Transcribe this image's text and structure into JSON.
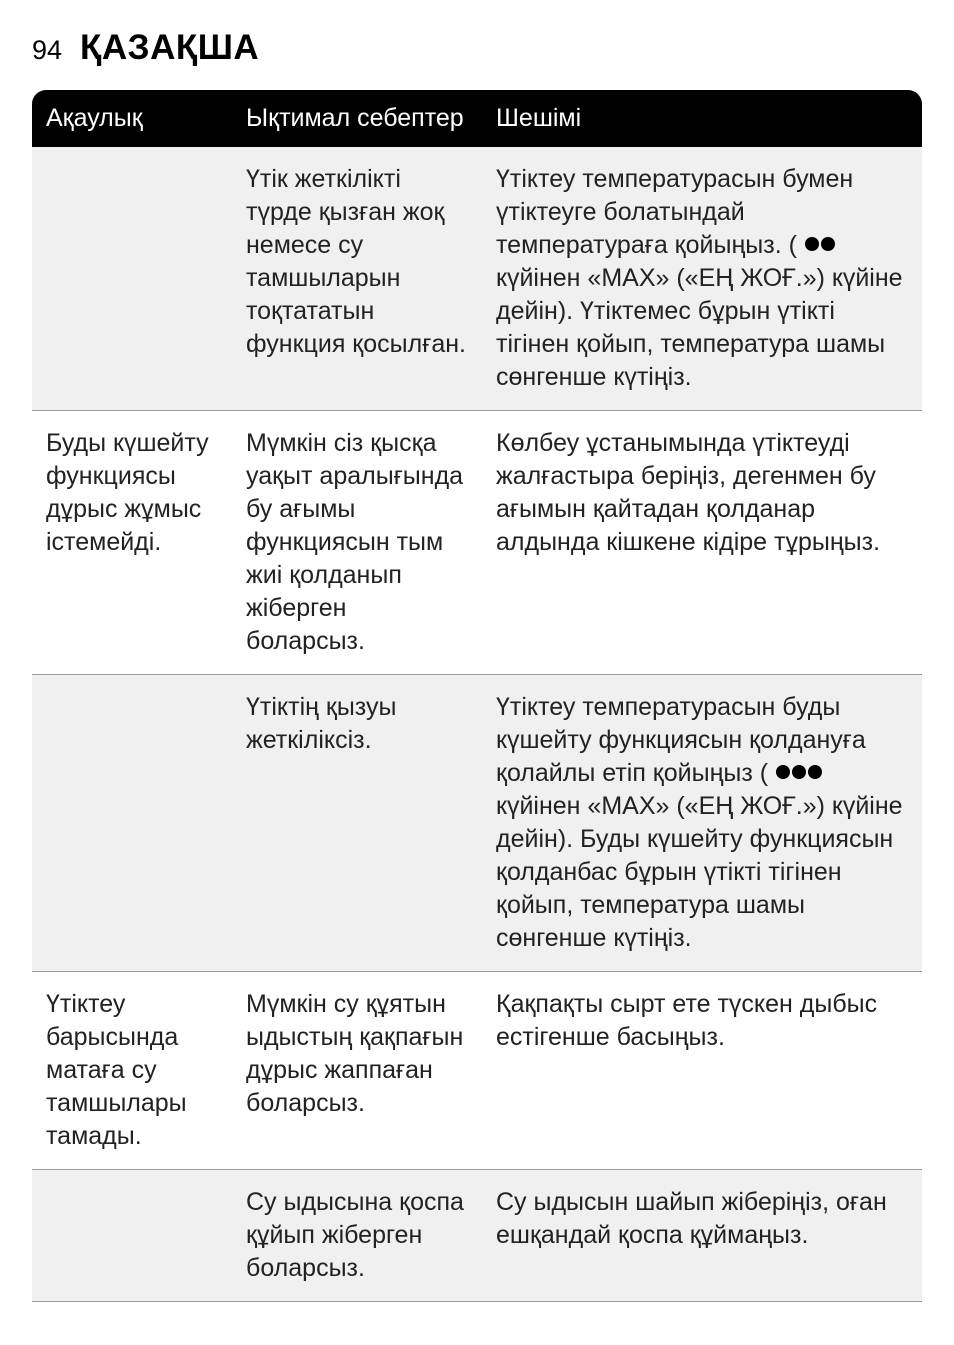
{
  "header": {
    "pageNumber": "94",
    "title": "ҚАЗАҚША"
  },
  "table": {
    "columns": [
      "Ақаулық",
      "Ықтимал себептер",
      "Шешімі"
    ],
    "rows": [
      {
        "problem": "",
        "cause": "Үтік жеткілікті түрде қызған жоқ немесе су тамшыларын тоқтататын функция қосылған.",
        "solution_before": "Үтіктеу температурасын бумен үтіктеуге болатындай температураға қойыңыз. ( ",
        "solution_dots": 2,
        "solution_after": " күйінен «MAX» («ЕҢ ЖОҒ.») күйіне дейін). Үтіктемес бұрын үтікті тігінен қойып, температура шамы сөнгенше күтіңіз."
      },
      {
        "problem": "Буды күшейту функциясы дұрыс жұмыс істемейді.",
        "cause": "Мүмкін сіз қысқа уақыт аралығында бу ағымы функциясын тым жиі қолданып жіберген боларсыз.",
        "solution_before": "Көлбеу ұстанымында үтіктеуді жалғастыра беріңіз, дегенмен бу ағымын қайтадан қолданар алдында кішкене кідіре тұрыңыз.",
        "solution_dots": 0,
        "solution_after": ""
      },
      {
        "problem": "",
        "cause": "Үтіктің қызуы жеткіліксіз.",
        "solution_before": "Үтіктеу температурасын буды күшейту функциясын қолдануға қолайлы етіп қойыңыз ( ",
        "solution_dots": 3,
        "solution_after": " күйінен «MAX» («ЕҢ ЖОҒ.») күйіне дейін). Буды күшейту функциясын қолданбас бұрын үтікті тігінен қойып, температура шамы сөнгенше күтіңіз."
      },
      {
        "problem": "Үтіктеу барысында матаға су тамшылары тамады.",
        "cause": "Мүмкін су құятын ыдыстың қақпағын дұрыс жаппаған боларсыз.",
        "solution_before": "Қақпақты сырт ете түскен дыбыс естігенше басыңыз.",
        "solution_dots": 0,
        "solution_after": ""
      },
      {
        "problem": "",
        "cause": "Су ыдысына қоспа құйып жіберген боларсыз.",
        "solution_before": "Су ыдысын шайып жіберіңіз, оған ешқандай қоспа құймаңыз.",
        "solution_dots": 0,
        "solution_after": ""
      }
    ]
  }
}
